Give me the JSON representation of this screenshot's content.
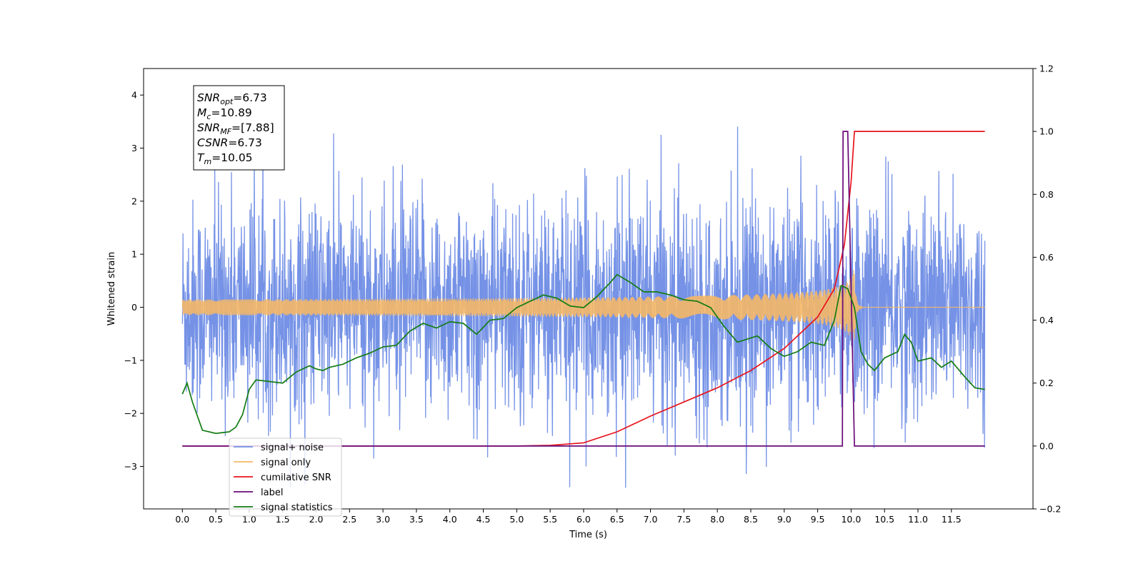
{
  "chart_data": {
    "type": "line",
    "title": "",
    "xlabel": "Time (s)",
    "ylabel": "Whitened strain",
    "xlim": [
      -0.58,
      12.72
    ],
    "ylim": [
      -3.8,
      4.5
    ],
    "y2lim": [
      -0.2,
      1.2
    ],
    "grid": false,
    "legend_position": "lower-left",
    "x_ticks": [
      "0.0",
      "0.5",
      "1.0",
      "1.5",
      "2.0",
      "2.5",
      "3.0",
      "3.5",
      "4.0",
      "4.5",
      "5.0",
      "5.5",
      "6.0",
      "6.5",
      "7.0",
      "7.5",
      "8.0",
      "8.5",
      "9.0",
      "9.5",
      "10.0",
      "10.5",
      "11.0",
      "11.5"
    ],
    "y_ticks": [
      "4",
      "3",
      "2",
      "1",
      "0",
      "−1",
      "−2",
      "−3"
    ],
    "y2_ticks": [
      "1.2",
      "1.0",
      "0.8",
      "0.6",
      "0.4",
      "0.2",
      "0.0",
      "−0.2"
    ],
    "info_box": [
      {
        "main": "SNR",
        "sub": "opt",
        "value": "=6.73"
      },
      {
        "main": "M",
        "sub": "c",
        "value": "=10.89"
      },
      {
        "main": "SNR",
        "sub": "MF",
        "value": "=[7.88]"
      },
      {
        "main": "CSNR",
        "sub": "",
        "value": "=6.73"
      },
      {
        "main": "T",
        "sub": "m",
        "value": "=10.05"
      }
    ],
    "series": [
      {
        "name": "signal+ noise",
        "color": "#7592e6",
        "axis": "left",
        "kind": "noise",
        "x_range": [
          0.0,
          12.0
        ],
        "amplitude": 1.0
      },
      {
        "name": "signal only",
        "color": "#f5b867",
        "axis": "left",
        "kind": "chirp",
        "merger_time": 10.05,
        "peak_amplitude": 0.7
      },
      {
        "name": "cumilative SNR",
        "color": "#e8141c",
        "axis": "right",
        "x": [
          0.0,
          5.0,
          5.5,
          6.0,
          6.5,
          7.0,
          7.5,
          8.0,
          8.5,
          9.0,
          9.5,
          9.75,
          9.9,
          10.0,
          10.05,
          12.0
        ],
        "values": [
          0.0,
          0.0,
          0.002,
          0.01,
          0.045,
          0.095,
          0.14,
          0.185,
          0.24,
          0.31,
          0.41,
          0.5,
          0.64,
          0.84,
          1.0,
          1.0
        ]
      },
      {
        "name": "label",
        "color": "#6a0a78",
        "axis": "right",
        "x": [
          0.0,
          9.87,
          9.88,
          9.95,
          10.05,
          12.0
        ],
        "values": [
          0.0,
          0.0,
          1.0,
          1.0,
          0.0,
          0.0
        ]
      },
      {
        "name": "signal statistics",
        "color": "#137c13",
        "axis": "right",
        "x": [
          0.0,
          0.07,
          0.15,
          0.3,
          0.5,
          0.7,
          0.8,
          0.9,
          1.0,
          1.1,
          1.3,
          1.5,
          1.7,
          1.9,
          2.0,
          2.1,
          2.2,
          2.4,
          2.6,
          2.8,
          3.0,
          3.2,
          3.4,
          3.6,
          3.8,
          4.0,
          4.2,
          4.4,
          4.6,
          4.8,
          5.0,
          5.2,
          5.4,
          5.6,
          5.8,
          6.0,
          6.2,
          6.4,
          6.5,
          6.7,
          6.9,
          7.1,
          7.3,
          7.5,
          7.7,
          7.9,
          8.1,
          8.3,
          8.6,
          8.8,
          9.0,
          9.2,
          9.4,
          9.6,
          9.75,
          9.85,
          9.95,
          10.05,
          10.15,
          10.25,
          10.35,
          10.5,
          10.7,
          10.8,
          10.9,
          11.0,
          11.2,
          11.35,
          11.5,
          11.7,
          11.85,
          12.0
        ],
        "values": [
          0.165,
          0.2,
          0.14,
          0.05,
          0.04,
          0.045,
          0.06,
          0.1,
          0.18,
          0.21,
          0.205,
          0.2,
          0.235,
          0.255,
          0.245,
          0.24,
          0.25,
          0.26,
          0.28,
          0.295,
          0.315,
          0.32,
          0.365,
          0.39,
          0.375,
          0.395,
          0.39,
          0.355,
          0.4,
          0.405,
          0.44,
          0.46,
          0.48,
          0.47,
          0.445,
          0.44,
          0.475,
          0.52,
          0.545,
          0.52,
          0.49,
          0.49,
          0.48,
          0.465,
          0.46,
          0.44,
          0.38,
          0.33,
          0.35,
          0.31,
          0.285,
          0.3,
          0.33,
          0.32,
          0.4,
          0.51,
          0.5,
          0.44,
          0.3,
          0.26,
          0.24,
          0.28,
          0.3,
          0.355,
          0.33,
          0.27,
          0.28,
          0.25,
          0.27,
          0.22,
          0.185,
          0.18
        ]
      }
    ]
  }
}
